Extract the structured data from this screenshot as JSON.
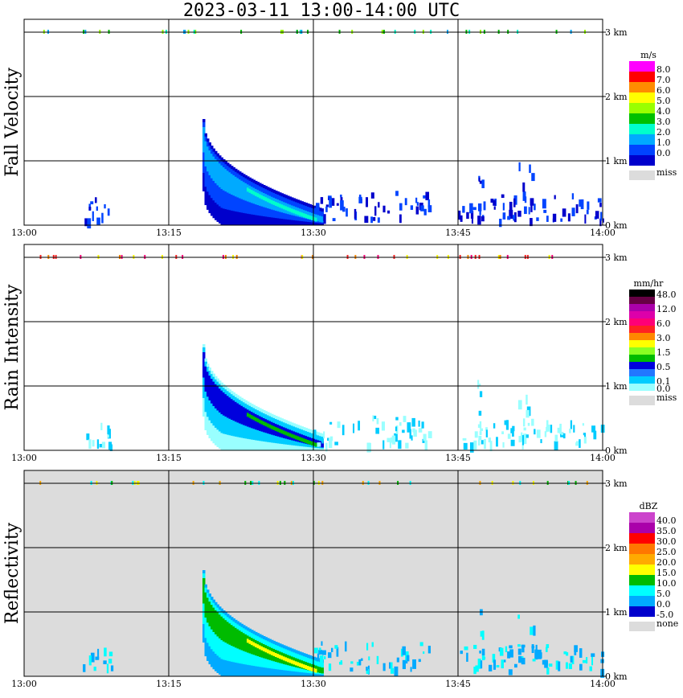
{
  "title": "2023-03-11   13:00-14:00 UTC",
  "time_ticks": [
    "13:00",
    "13:15",
    "13:30",
    "13:45",
    "14:00"
  ],
  "height_ticks": [
    "0 km",
    "1 km",
    "2 km",
    "3 km"
  ],
  "panels": [
    {
      "ylabel": "Fall Velocity",
      "unit": "m/s",
      "background": "#ffffff",
      "legend": [
        {
          "label": "8.0",
          "color": "#ff00ff"
        },
        {
          "label": "7.0",
          "color": "#ff0000"
        },
        {
          "label": "6.0",
          "color": "#ff8c00"
        },
        {
          "label": "5.0",
          "color": "#ffff00"
        },
        {
          "label": "4.0",
          "color": "#99ff00"
        },
        {
          "label": "3.0",
          "color": "#00c000"
        },
        {
          "label": "2.0",
          "color": "#00ffcc"
        },
        {
          "label": "1.0",
          "color": "#00aaff"
        },
        {
          "label": "0.0",
          "color": "#0044ff"
        },
        {
          "label": "",
          "color": "#0000cc"
        }
      ],
      "miss_label": "miss"
    },
    {
      "ylabel": "Rain Intensity",
      "unit": "mm/hr",
      "background": "#ffffff",
      "legend": [
        {
          "label": "48.0",
          "color": "#000000"
        },
        {
          "label": "",
          "color": "#660044"
        },
        {
          "label": "12.0",
          "color": "#aa00aa"
        },
        {
          "label": "",
          "color": "#dd00aa"
        },
        {
          "label": "6.0",
          "color": "#ff0077"
        },
        {
          "label": "",
          "color": "#ff2222"
        },
        {
          "label": "3.0",
          "color": "#ff8800"
        },
        {
          "label": "",
          "color": "#ffff00"
        },
        {
          "label": "1.5",
          "color": "#88ff22"
        },
        {
          "label": "",
          "color": "#00bb00"
        },
        {
          "label": "0.5",
          "color": "#0000dd"
        },
        {
          "label": "",
          "color": "#2277ff"
        },
        {
          "label": "0.1",
          "color": "#00ccff"
        },
        {
          "label": "0.0",
          "color": "#99ffff"
        }
      ],
      "miss_label": "miss"
    },
    {
      "ylabel": "Reflectivity",
      "unit": "dBZ",
      "background": "#dcdcdc",
      "legend": [
        {
          "label": "40.0",
          "color": "#cc44cc"
        },
        {
          "label": "35.0",
          "color": "#aa00aa"
        },
        {
          "label": "30.0",
          "color": "#ff0000"
        },
        {
          "label": "25.0",
          "color": "#ff7700"
        },
        {
          "label": "20.0",
          "color": "#ffaa00"
        },
        {
          "label": "15.0",
          "color": "#ffff00"
        },
        {
          "label": "10.0",
          "color": "#00bb00"
        },
        {
          "label": "5.0",
          "color": "#00ffff"
        },
        {
          "label": "0.0",
          "color": "#00aaff"
        },
        {
          "label": "-5.0",
          "color": "#0000cc"
        }
      ],
      "miss_label": "none"
    }
  ],
  "chart_data": {
    "type": "heatmap",
    "x_range": [
      "13:00",
      "14:00"
    ],
    "y_range_km": [
      0,
      3
    ],
    "grid": true,
    "legend_placement": "right",
    "echo_features": [
      {
        "name": "main rain streak",
        "start_time": "13:18.5",
        "end_time": "13:31",
        "top_km_start": 1.65,
        "top_km_end": 0.25
      },
      {
        "name": "weak low echo",
        "start_time": "13:06",
        "end_time": "13:09",
        "top_km": 0.45
      },
      {
        "name": "scattered light rain",
        "start_time": "13:30",
        "end_time": "13:42",
        "top_km": 0.55
      },
      {
        "name": "light rain 13:45",
        "start_time": "13:45",
        "end_time": "14:00",
        "top_km": 0.5
      },
      {
        "name": "virga streak",
        "start_time": "13:47",
        "end_time": "13:47.5",
        "top_km": 1.1
      },
      {
        "name": "streak 13:51",
        "start_time": "13:51",
        "end_time": "13:53",
        "top_km": 1.0
      }
    ]
  }
}
